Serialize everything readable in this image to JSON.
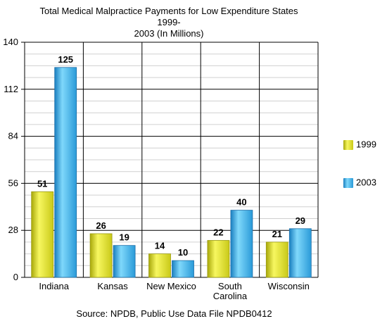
{
  "chart_data": {
    "type": "bar",
    "title": "Total Medical Malpractice Payments for Low Expenditure States 1999-2003 (In Millions)",
    "title_lines": [
      "Total Medical Malpractice Payments for Low Expenditure States 1999-",
      "2003 (In Millions)"
    ],
    "categories": [
      "Indiana",
      "Kansas",
      "New Mexico",
      "South Carolina",
      "Wisconsin"
    ],
    "category_lines": [
      [
        "Indiana"
      ],
      [
        "Kansas"
      ],
      [
        "New Mexico"
      ],
      [
        "South",
        "Carolina"
      ],
      [
        "Wisconsin"
      ]
    ],
    "series": [
      {
        "name": "1999",
        "values": [
          51,
          26,
          14,
          22,
          21
        ],
        "color": "#e6e62a"
      },
      {
        "name": "2003",
        "values": [
          125,
          19,
          10,
          40,
          29
        ],
        "color": "#3db8ee"
      }
    ],
    "yticks": [
      0,
      28,
      56,
      84,
      112,
      140
    ],
    "ylim": [
      0,
      140
    ],
    "grid": true,
    "legend": "right",
    "source": "Source: NPDB, Public Use Data File NPDB0412"
  }
}
